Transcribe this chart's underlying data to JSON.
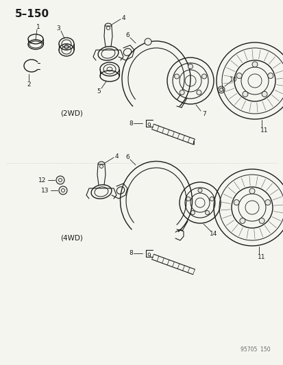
{
  "title": "5–150",
  "bg_color": "#f5f5f0",
  "line_color": "#1a1a1a",
  "watermark": "95705  150",
  "s1_label": "(2WD)",
  "s2_label": "(4WD)",
  "figsize": [
    4.14,
    5.33
  ],
  "dpi": 100
}
